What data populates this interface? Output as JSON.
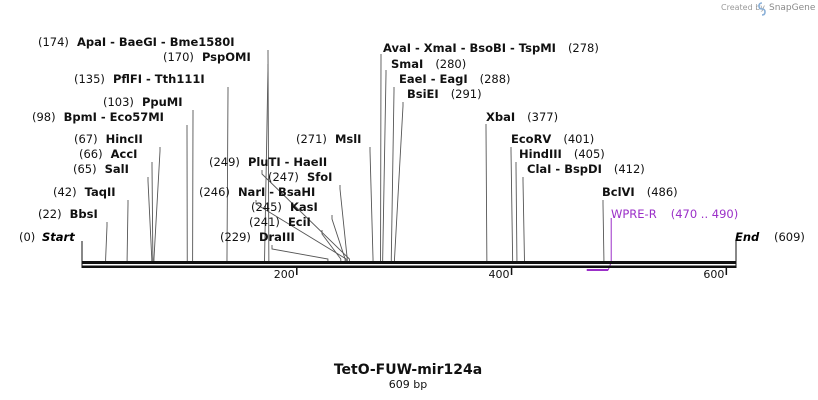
{
  "credit": {
    "prefix": "Created by",
    "brand": "SnapGene"
  },
  "plasmid": {
    "name": "TetO-FUW-mir124a",
    "length_label": "609 bp",
    "length": 609
  },
  "ticks": [
    "200",
    "400",
    "600"
  ],
  "tick_values": [
    200,
    400,
    600
  ],
  "ends": {
    "start": {
      "label": "Start",
      "pos_label": "(0)"
    },
    "end": {
      "label": "End",
      "pos_label": "(609)"
    }
  },
  "primer": {
    "name": "WPRE-R",
    "range": "(470 .. 490)",
    "start": 470,
    "end": 490,
    "color": "#9b30c8"
  },
  "labels": [
    {
      "pos": "(174)",
      "names": "ApaI  - BaeGI  - Bme1580I",
      "sites": [
        174,
        174,
        174
      ]
    },
    {
      "pos": "(170)",
      "names": "PspOMI",
      "sites": [
        170
      ]
    },
    {
      "pos": "(135)",
      "names": "PflFI  - Tth111I",
      "sites": [
        135,
        135
      ]
    },
    {
      "pos": "(103)",
      "names": "PpuMI",
      "sites": [
        103
      ]
    },
    {
      "pos": "(98)",
      "names": "BpmI  - Eco57MI",
      "sites": [
        98,
        98
      ]
    },
    {
      "pos": "(67)",
      "names": "HincII",
      "sites": [
        67
      ]
    },
    {
      "pos": "(66)",
      "names": "AccI",
      "sites": [
        66
      ]
    },
    {
      "pos": "(65)",
      "names": "SalI",
      "sites": [
        65
      ]
    },
    {
      "pos": "(42)",
      "names": "TaqII",
      "sites": [
        42
      ]
    },
    {
      "pos": "(22)",
      "names": "BbsI",
      "sites": [
        22
      ]
    },
    {
      "pos": "(249)",
      "names": "PluTI  - HaeII",
      "sites": [
        249,
        249
      ]
    },
    {
      "pos": "(247)",
      "names": "SfoI",
      "sites": [
        247
      ]
    },
    {
      "pos": "(246)",
      "names": "NarI  - BsaHI",
      "sites": [
        246,
        246
      ]
    },
    {
      "pos": "(245)",
      "names": "KasI",
      "sites": [
        245
      ]
    },
    {
      "pos": "(241)",
      "names": "EciI",
      "sites": [
        241
      ]
    },
    {
      "pos": "(229)",
      "names": "DraIII",
      "sites": [
        229
      ]
    },
    {
      "pos": "(271)",
      "names": "MslI",
      "sites": [
        271
      ]
    },
    {
      "pos": "(278)",
      "names": "AvaI  - XmaI  - BsoBI  - TspMI",
      "sites": [
        278,
        278,
        278,
        278
      ]
    },
    {
      "pos": "(280)",
      "names": "SmaI",
      "sites": [
        280
      ]
    },
    {
      "pos": "(288)",
      "names": "EaeI  - EagI",
      "sites": [
        288,
        288
      ]
    },
    {
      "pos": "(291)",
      "names": "BsiEI",
      "sites": [
        291
      ]
    },
    {
      "pos": "(377)",
      "names": "XbaI",
      "sites": [
        377
      ]
    },
    {
      "pos": "(401)",
      "names": "EcoRV",
      "sites": [
        401
      ]
    },
    {
      "pos": "(405)",
      "names": "HindIII",
      "sites": [
        405
      ]
    },
    {
      "pos": "(412)",
      "names": "ClaI  - BspDI",
      "sites": [
        412,
        412
      ]
    },
    {
      "pos": "(486)",
      "names": "BclVI",
      "sites": [
        486
      ]
    }
  ]
}
